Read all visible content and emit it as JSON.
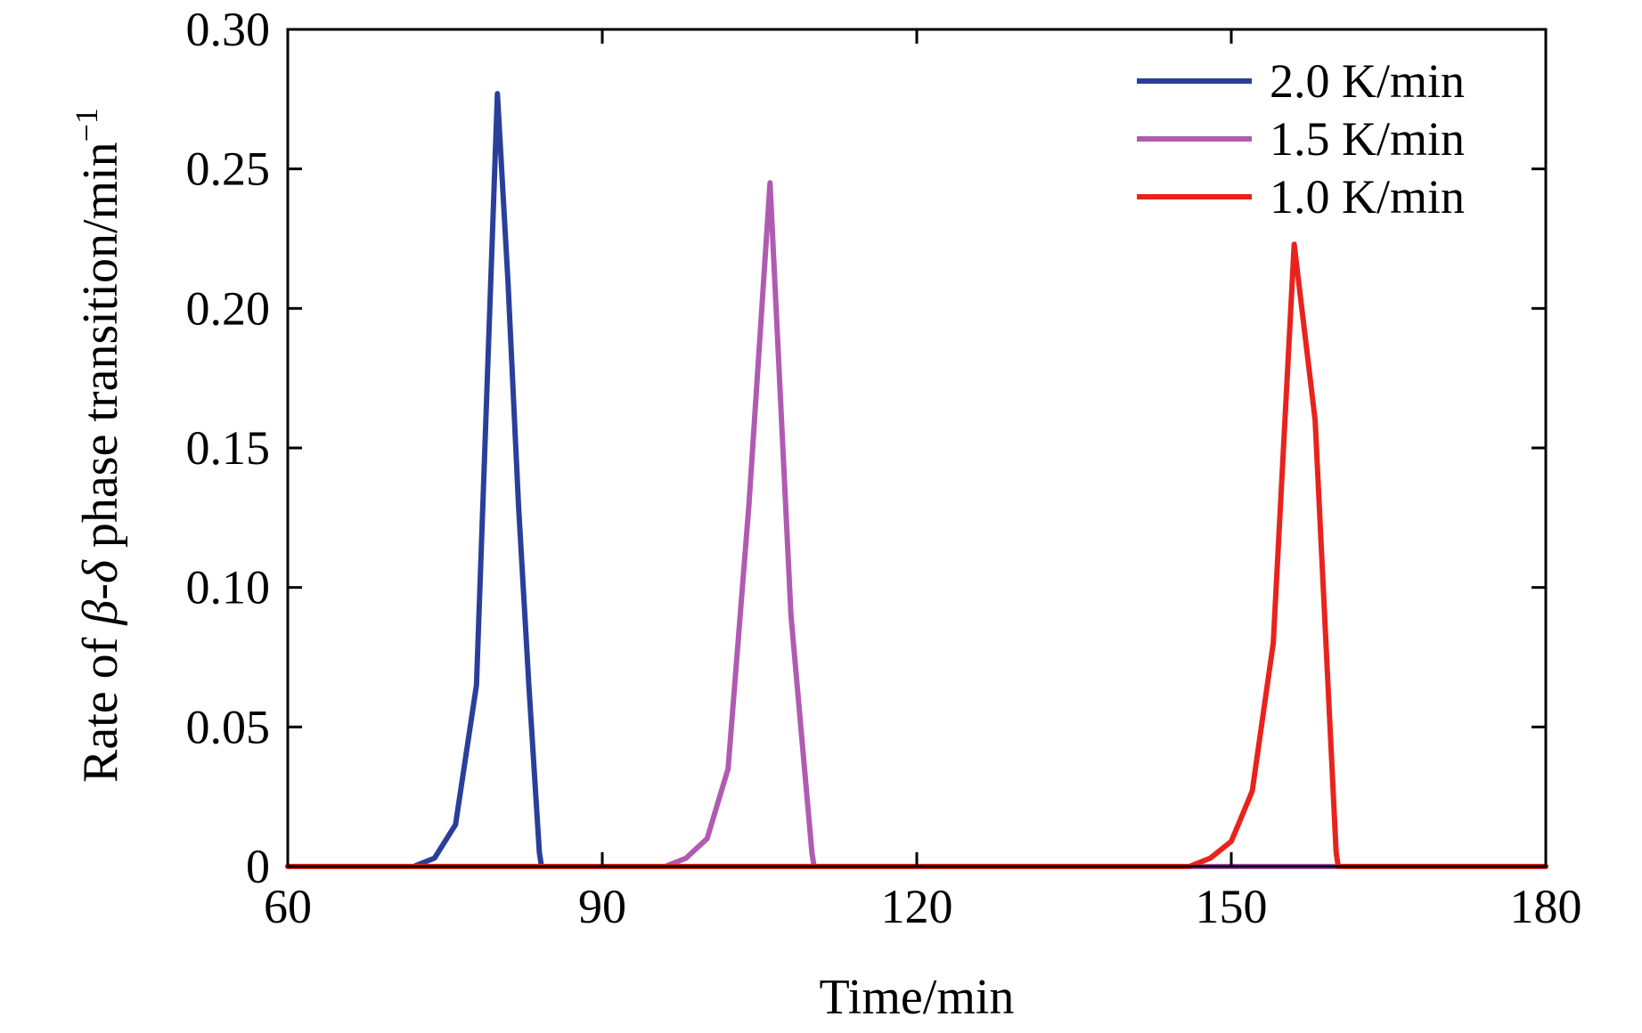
{
  "chart_data": {
    "type": "line",
    "title": "",
    "xlabel": "Time/min",
    "ylabel": {
      "prefix": "Rate of ",
      "beta": "β",
      "dash": "-",
      "delta": "δ",
      "middle": " phase transition/min",
      "superscript": "−1"
    },
    "xlim": [
      60,
      180
    ],
    "ylim": [
      0,
      0.3
    ],
    "xticks": [
      60,
      90,
      120,
      150,
      180
    ],
    "xtick_labels": [
      "60",
      "90",
      "120",
      "150",
      "180"
    ],
    "yticks": [
      0,
      0.05,
      0.1,
      0.15,
      0.2,
      0.25,
      0.3
    ],
    "ytick_labels": [
      "0",
      "0.05",
      "0.10",
      "0.15",
      "0.20",
      "0.25",
      "0.30"
    ],
    "grid": false,
    "legend_position": "top-right",
    "series": [
      {
        "name": "2.0 K/min",
        "color": "#2a3f9a",
        "x": [
          60,
          72,
          74,
          76,
          78,
          80,
          81,
          82,
          83,
          84,
          84.2,
          180
        ],
        "y": [
          0,
          0,
          0.003,
          0.015,
          0.065,
          0.277,
          0.21,
          0.13,
          0.065,
          0.005,
          0,
          0
        ]
      },
      {
        "name": "1.5 K/min",
        "color": "#b05bb1",
        "x": [
          60,
          96,
          98,
          100,
          102,
          104,
          106,
          108,
          110,
          110.2,
          180
        ],
        "y": [
          0,
          0,
          0.003,
          0.01,
          0.035,
          0.13,
          0.245,
          0.09,
          0.005,
          0,
          0
        ]
      },
      {
        "name": "1.0 K/min",
        "color": "#e8231e",
        "x": [
          60,
          146,
          148,
          150,
          152,
          154,
          156,
          158,
          160,
          160.2,
          180
        ],
        "y": [
          0,
          0,
          0.003,
          0.009,
          0.027,
          0.08,
          0.223,
          0.16,
          0.005,
          0,
          0
        ]
      }
    ]
  }
}
